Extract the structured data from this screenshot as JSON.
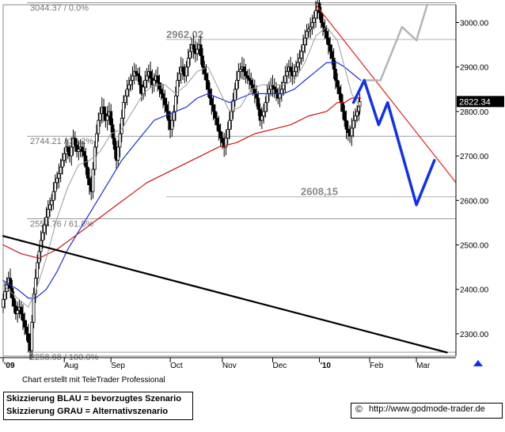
{
  "chart_data": {
    "type": "candlestick",
    "y_axis": {
      "ylim": [
        2250,
        3040
      ],
      "ticks": [
        2300,
        2400,
        2500,
        2600,
        2700,
        2800,
        2900,
        3000
      ],
      "tick_labels": [
        "2300.00",
        "2400.00",
        "2500.00",
        "2600.00",
        "2700.00",
        "2800.00",
        "2900.00",
        "3000.00"
      ],
      "position": "right"
    },
    "x_axis": {
      "labels": [
        "'09",
        "Aug",
        "Sep",
        "Oct",
        "Nov",
        "Dec",
        "'10",
        "Feb",
        "Mar"
      ],
      "xlim": [
        0,
        252
      ],
      "label_positions": [
        0,
        34,
        60,
        93,
        122,
        150,
        176,
        204,
        230
      ]
    },
    "fibonacci_levels": [
      {
        "value": 3044.37,
        "label": "3044.37 / 0.0%"
      },
      {
        "value": 2744.21,
        "label": "2744.21 / 38.2%"
      },
      {
        "value": 2558.76,
        "label": "2558.76 / 61.8%"
      },
      {
        "value": 2258.68,
        "label": "2258.68 / 100.0%"
      }
    ],
    "horizontal_levels": [
      {
        "value": 2962.02,
        "label": "2962,02"
      },
      {
        "value": 2608.15,
        "label": "2608,15"
      }
    ],
    "last_price": {
      "value": 2822.34,
      "label": "2822.34"
    },
    "price_path": [
      [
        0,
        2360
      ],
      [
        2,
        2395
      ],
      [
        4,
        2425
      ],
      [
        6,
        2380
      ],
      [
        8,
        2345
      ],
      [
        10,
        2360
      ],
      [
        12,
        2330
      ],
      [
        14,
        2300
      ],
      [
        16,
        2262
      ],
      [
        18,
        2390
      ],
      [
        20,
        2460
      ],
      [
        22,
        2510
      ],
      [
        24,
        2545
      ],
      [
        26,
        2580
      ],
      [
        28,
        2600
      ],
      [
        30,
        2640
      ],
      [
        32,
        2660
      ],
      [
        34,
        2690
      ],
      [
        36,
        2720
      ],
      [
        38,
        2700
      ],
      [
        40,
        2740
      ],
      [
        42,
        2710
      ],
      [
        44,
        2720
      ],
      [
        46,
        2700
      ],
      [
        48,
        2650
      ],
      [
        50,
        2620
      ],
      [
        52,
        2720
      ],
      [
        54,
        2780
      ],
      [
        56,
        2810
      ],
      [
        58,
        2780
      ],
      [
        60,
        2800
      ],
      [
        62,
        2740
      ],
      [
        64,
        2690
      ],
      [
        66,
        2750
      ],
      [
        68,
        2820
      ],
      [
        70,
        2850
      ],
      [
        72,
        2870
      ],
      [
        74,
        2890
      ],
      [
        76,
        2880
      ],
      [
        78,
        2840
      ],
      [
        80,
        2870
      ],
      [
        82,
        2890
      ],
      [
        84,
        2860
      ],
      [
        86,
        2880
      ],
      [
        88,
        2850
      ],
      [
        90,
        2830
      ],
      [
        92,
        2800
      ],
      [
        94,
        2760
      ],
      [
        96,
        2800
      ],
      [
        98,
        2870
      ],
      [
        100,
        2900
      ],
      [
        102,
        2880
      ],
      [
        104,
        2920
      ],
      [
        106,
        2950
      ],
      [
        108,
        2930
      ],
      [
        110,
        2950
      ],
      [
        112,
        2900
      ],
      [
        114,
        2870
      ],
      [
        116,
        2830
      ],
      [
        118,
        2800
      ],
      [
        120,
        2770
      ],
      [
        122,
        2740
      ],
      [
        124,
        2720
      ],
      [
        126,
        2760
      ],
      [
        128,
        2800
      ],
      [
        130,
        2850
      ],
      [
        132,
        2890
      ],
      [
        134,
        2900
      ],
      [
        136,
        2880
      ],
      [
        138,
        2870
      ],
      [
        140,
        2850
      ],
      [
        142,
        2830
      ],
      [
        144,
        2780
      ],
      [
        146,
        2800
      ],
      [
        148,
        2840
      ],
      [
        150,
        2860
      ],
      [
        152,
        2850
      ],
      [
        154,
        2830
      ],
      [
        156,
        2850
      ],
      [
        158,
        2880
      ],
      [
        160,
        2900
      ],
      [
        162,
        2880
      ],
      [
        164,
        2900
      ],
      [
        166,
        2920
      ],
      [
        168,
        2950
      ],
      [
        170,
        2980
      ],
      [
        172,
        2990
      ],
      [
        174,
        3010
      ],
      [
        176,
        3044
      ],
      [
        178,
        3000
      ],
      [
        180,
        2980
      ],
      [
        182,
        2950
      ],
      [
        184,
        2920
      ],
      [
        186,
        2870
      ],
      [
        188,
        2840
      ],
      [
        190,
        2800
      ],
      [
        192,
        2760
      ],
      [
        194,
        2745
      ],
      [
        196,
        2780
      ],
      [
        198,
        2800
      ],
      [
        199,
        2822
      ]
    ],
    "ma_gray": [
      [
        0,
        2410
      ],
      [
        8,
        2380
      ],
      [
        14,
        2360
      ],
      [
        18,
        2395
      ],
      [
        24,
        2470
      ],
      [
        30,
        2560
      ],
      [
        36,
        2630
      ],
      [
        42,
        2680
      ],
      [
        48,
        2690
      ],
      [
        54,
        2710
      ],
      [
        60,
        2750
      ],
      [
        66,
        2760
      ],
      [
        72,
        2800
      ],
      [
        78,
        2840
      ],
      [
        84,
        2860
      ],
      [
        90,
        2860
      ],
      [
        96,
        2840
      ],
      [
        102,
        2860
      ],
      [
        108,
        2890
      ],
      [
        114,
        2900
      ],
      [
        120,
        2850
      ],
      [
        126,
        2800
      ],
      [
        132,
        2810
      ],
      [
        138,
        2850
      ],
      [
        144,
        2860
      ],
      [
        150,
        2860
      ],
      [
        156,
        2860
      ],
      [
        162,
        2870
      ],
      [
        168,
        2910
      ],
      [
        174,
        2970
      ],
      [
        180,
        2990
      ],
      [
        186,
        2960
      ],
      [
        190,
        2900
      ],
      [
        194,
        2840
      ],
      [
        199,
        2810
      ]
    ],
    "ma_blue": [
      [
        0,
        2420
      ],
      [
        8,
        2400
      ],
      [
        14,
        2380
      ],
      [
        18,
        2380
      ],
      [
        24,
        2400
      ],
      [
        30,
        2440
      ],
      [
        36,
        2490
      ],
      [
        42,
        2530
      ],
      [
        48,
        2570
      ],
      [
        54,
        2610
      ],
      [
        60,
        2650
      ],
      [
        66,
        2690
      ],
      [
        72,
        2720
      ],
      [
        78,
        2750
      ],
      [
        84,
        2780
      ],
      [
        90,
        2790
      ],
      [
        96,
        2800
      ],
      [
        102,
        2810
      ],
      [
        108,
        2830
      ],
      [
        114,
        2840
      ],
      [
        120,
        2830
      ],
      [
        126,
        2820
      ],
      [
        132,
        2830
      ],
      [
        138,
        2840
      ],
      [
        144,
        2840
      ],
      [
        150,
        2840
      ],
      [
        156,
        2840
      ],
      [
        162,
        2850
      ],
      [
        168,
        2870
      ],
      [
        174,
        2890
      ],
      [
        180,
        2910
      ],
      [
        186,
        2910
      ],
      [
        190,
        2900
      ],
      [
        196,
        2880
      ],
      [
        199,
        2870
      ]
    ],
    "ma_red": [
      [
        0,
        2500
      ],
      [
        10,
        2480
      ],
      [
        20,
        2470
      ],
      [
        30,
        2490
      ],
      [
        40,
        2520
      ],
      [
        50,
        2550
      ],
      [
        60,
        2580
      ],
      [
        70,
        2610
      ],
      [
        80,
        2640
      ],
      [
        90,
        2660
      ],
      [
        100,
        2680
      ],
      [
        110,
        2700
      ],
      [
        120,
        2720
      ],
      [
        130,
        2730
      ],
      [
        140,
        2750
      ],
      [
        150,
        2760
      ],
      [
        160,
        2770
      ],
      [
        170,
        2790
      ],
      [
        180,
        2800
      ],
      [
        186,
        2820
      ],
      [
        190,
        2820
      ],
      [
        194,
        2830
      ],
      [
        199,
        2830
      ]
    ],
    "trendline_black": [
      [
        0,
        2520
      ],
      [
        247,
        2258
      ]
    ],
    "trendline_red": [
      [
        174,
        3040
      ],
      [
        252,
        2640
      ]
    ],
    "scenario_blue": [
      [
        195,
        2820
      ],
      [
        201,
        2870
      ],
      [
        209,
        2770
      ],
      [
        214,
        2820
      ],
      [
        230,
        2590
      ],
      [
        240,
        2690
      ]
    ],
    "scenario_gray": [
      [
        201,
        2870
      ],
      [
        210,
        2870
      ],
      [
        222,
        2990
      ],
      [
        230,
        2960
      ],
      [
        236,
        3040
      ]
    ],
    "colors": {
      "up": "#000000",
      "down": "#000000",
      "ma_gray": "#9a9a9a",
      "ma_blue": "#1a2fd6",
      "ma_red": "#cc1111",
      "trend_red": "#e02020",
      "trend_black": "#000000",
      "scenario_blue": "#1030ee",
      "scenario_gray": "#b5b5b5",
      "grid": "#9a9a9a"
    },
    "grid": "horizontal-levels-only"
  },
  "footer": {
    "credit": "Chart erstellt mit TeleTrader Professional",
    "legend_blue": "Skizzierung BLAU = bevorzugtes Szenario",
    "legend_gray": "Skizzierung GRAU = Alternativszenario",
    "copyright_symbol": "©",
    "source": "http://www.godmode-trader.de"
  }
}
